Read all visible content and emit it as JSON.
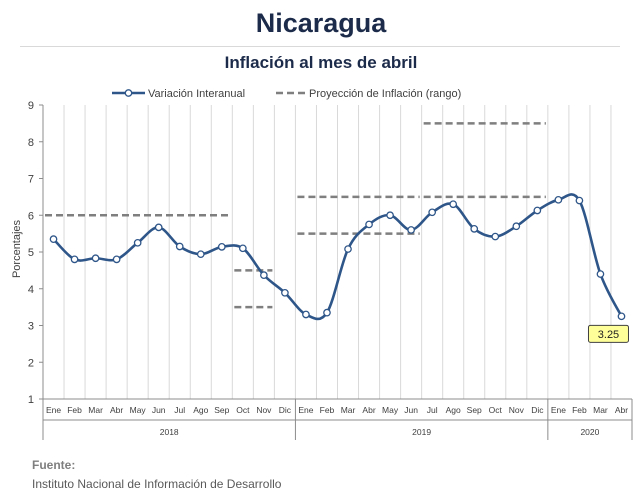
{
  "header": {
    "title": "Nicaragua",
    "subtitle": "Inflación al mes de abril"
  },
  "footer": {
    "source_label": "Fuente:",
    "source_text": "Instituto Nacional de Información de  Desarrollo"
  },
  "chart_data": {
    "type": "line",
    "ylabel": "Porcentajes",
    "ylim": [
      1,
      9
    ],
    "yticks": [
      1,
      2,
      3,
      4,
      5,
      6,
      7,
      8,
      9
    ],
    "grid": "vertical",
    "legend_position": "top-center",
    "months": [
      "Ene",
      "Feb",
      "Mar",
      "Abr",
      "May",
      "Jun",
      "Jul",
      "Ago",
      "Sep",
      "Oct",
      "Nov",
      "Dic",
      "Ene",
      "Feb",
      "Mar",
      "Abr",
      "May",
      "Jun",
      "Jul",
      "Ago",
      "Sep",
      "Oct",
      "Nov",
      "Dic",
      "Ene",
      "Feb",
      "Mar",
      "Abr"
    ],
    "years": [
      {
        "label": "2018",
        "months": 12
      },
      {
        "label": "2019",
        "months": 12
      },
      {
        "label": "2020",
        "months": 4
      }
    ],
    "series": [
      {
        "name": "Variación Interanual",
        "color": "#2f5689",
        "values": [
          5.35,
          4.8,
          4.83,
          4.8,
          5.25,
          5.67,
          5.15,
          4.94,
          5.14,
          5.1,
          4.37,
          3.89,
          3.3,
          3.35,
          5.08,
          5.75,
          6.0,
          5.6,
          6.08,
          6.3,
          5.63,
          5.42,
          5.7,
          6.13,
          6.42,
          6.4,
          4.4,
          3.25
        ]
      }
    ],
    "projection": {
      "name": "Proyección de Inflación (rango)",
      "color": "#7f7f7f",
      "segments": [
        {
          "from": 0,
          "to": 8,
          "value": 6.0
        },
        {
          "from": 9,
          "to": 10,
          "value": 4.5
        },
        {
          "from": 9,
          "to": 10,
          "value": 3.5
        },
        {
          "from": 12,
          "to": 17,
          "value": 6.5
        },
        {
          "from": 12,
          "to": 17,
          "value": 5.5
        },
        {
          "from": 18,
          "to": 23,
          "value": 8.5
        },
        {
          "from": 18,
          "to": 23,
          "value": 6.5
        }
      ]
    },
    "callout": {
      "index": 27,
      "label": "3.25",
      "fill": "#ffff99"
    }
  }
}
